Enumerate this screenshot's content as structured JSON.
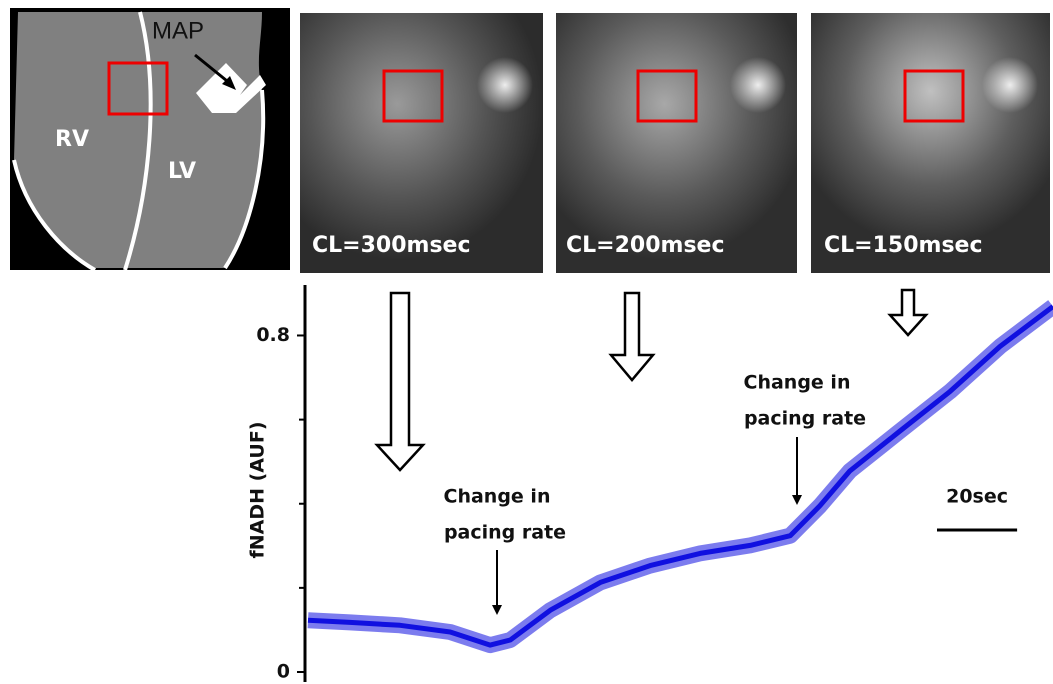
{
  "panels": {
    "heart": {
      "labels": {
        "rv": "RV",
        "lv": "LV",
        "probe": "MAP"
      }
    },
    "images": [
      {
        "label": "CL=300msec"
      },
      {
        "label": "CL=200msec"
      },
      {
        "label": "CL=150msec"
      }
    ]
  },
  "chart_data": {
    "type": "line",
    "y_label": "fNADH (AUF)",
    "x": [
      0,
      10.5,
      23,
      35.5,
      45.5,
      50.5,
      60.5,
      73,
      85.4,
      97.9,
      110.4,
      120.4,
      127.8,
      135.3,
      147.8,
      160.3,
      172.8,
      186
    ],
    "series": [
      {
        "color": "#1010e0",
        "values": [
          0.123,
          0.118,
          0.111,
          0.095,
          0.064,
          0.076,
          0.147,
          0.213,
          0.253,
          0.282,
          0.301,
          0.324,
          0.395,
          0.478,
          0.573,
          0.667,
          0.774,
          0.869
        ]
      }
    ],
    "xlim": [
      0,
      186
    ],
    "ylim": [
      0,
      0.92
    ],
    "yticks": [
      0,
      0.8
    ],
    "minor_yticks": [
      0.2,
      0.4,
      0.6
    ],
    "annotations": [
      {
        "lines": [
          "Change in",
          "pacing rate"
        ]
      },
      {
        "lines": [
          "Change in",
          "pacing rate"
        ]
      }
    ],
    "scale_bar": {
      "label": "20sec",
      "length": 20
    }
  }
}
